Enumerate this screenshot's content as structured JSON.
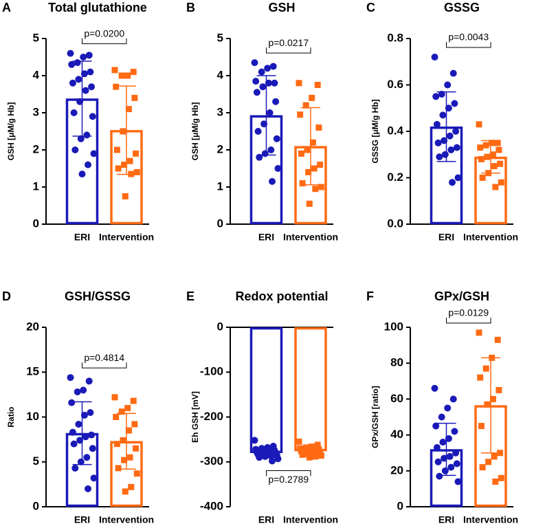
{
  "chart_data": [
    {
      "type": "bar",
      "panel": "A",
      "title": "Total glutathione",
      "ylabel": "GSH [μM/g Hb]",
      "categories": [
        "ERI",
        "Intervention"
      ],
      "values": [
        3.38,
        2.53
      ],
      "errors": [
        1.01,
        1.19
      ],
      "points": [
        [
          4.6,
          4.55,
          4.5,
          4.35,
          4.3,
          4.1,
          4.05,
          3.9,
          3.8,
          3.7,
          3.6,
          3.3,
          3.0,
          2.9,
          2.4,
          2.3,
          2.0,
          1.9,
          1.6,
          1.35
        ],
        [
          4.15,
          4.1,
          4.0,
          4.0,
          3.7,
          3.4,
          3.1,
          2.5,
          2.0,
          1.9,
          1.7,
          1.6,
          1.5,
          1.4,
          1.35,
          0.75
        ]
      ],
      "colors": [
        "#1a1ab8",
        "#ff6a13"
      ],
      "markers": [
        "circle",
        "square"
      ],
      "ylim": [
        0,
        5
      ],
      "yticks": [
        0,
        1,
        2,
        3,
        4,
        5
      ],
      "annotation": "p=0.0200"
    },
    {
      "type": "bar",
      "panel": "B",
      "title": "GSH",
      "ylabel": "GSH [μM/g Hb]",
      "categories": [
        "ERI",
        "Intervention"
      ],
      "values": [
        2.93,
        2.1
      ],
      "errors": [
        1.07,
        1.04
      ],
      "points": [
        [
          4.35,
          4.25,
          4.2,
          4.1,
          3.85,
          3.8,
          3.8,
          3.7,
          3.55,
          3.3,
          3.0,
          2.7,
          2.5,
          2.3,
          2.0,
          1.9,
          1.8,
          1.5,
          1.15
        ],
        [
          3.8,
          3.75,
          3.4,
          3.2,
          2.95,
          2.6,
          2.2,
          2.0,
          1.9,
          1.6,
          1.5,
          1.4,
          1.1,
          1.0,
          0.95,
          0.55
        ]
      ],
      "colors": [
        "#1a1ab8",
        "#ff6a13"
      ],
      "markers": [
        "circle",
        "square"
      ],
      "ylim": [
        0,
        5
      ],
      "yticks": [
        0,
        1,
        2,
        3,
        4,
        5
      ],
      "annotation": "p=0.0217"
    },
    {
      "type": "bar",
      "panel": "C",
      "title": "GSSG",
      "ylabel": "GSSG [μM/g Hb]",
      "categories": [
        "ERI",
        "Intervention"
      ],
      "values": [
        0.42,
        0.29
      ],
      "errors": [
        0.15,
        0.07
      ],
      "points": [
        [
          0.72,
          0.65,
          0.6,
          0.56,
          0.55,
          0.52,
          0.5,
          0.47,
          0.43,
          0.4,
          0.38,
          0.36,
          0.35,
          0.33,
          0.32,
          0.3,
          0.29,
          0.2,
          0.18
        ],
        [
          0.43,
          0.35,
          0.35,
          0.34,
          0.33,
          0.32,
          0.3,
          0.29,
          0.28,
          0.26,
          0.25,
          0.22,
          0.2,
          0.18,
          0.16
        ]
      ],
      "colors": [
        "#1a1ab8",
        "#ff6a13"
      ],
      "markers": [
        "circle",
        "square"
      ],
      "ylim": [
        0,
        0.8
      ],
      "yticks": [
        {
          "value": 0,
          "label": "0.0"
        },
        0.2,
        0.4,
        0.6,
        0.8
      ],
      "annotation": "p=0.0043"
    },
    {
      "type": "bar",
      "panel": "D",
      "title": "GSH/GSSG",
      "ylabel": "Ratio",
      "categories": [
        "ERI",
        "Intervention"
      ],
      "values": [
        8.2,
        7.3
      ],
      "errors": [
        3.5,
        3.1
      ],
      "points": [
        [
          14.4,
          14.0,
          13.0,
          12.8,
          11.6,
          10.5,
          10.2,
          9.2,
          8.3,
          8.0,
          7.8,
          7.4,
          7.0,
          6.5,
          5.5,
          5.0,
          4.3,
          3.2,
          2.0
        ],
        [
          12.2,
          11.8,
          11.0,
          10.6,
          10.0,
          9.2,
          8.5,
          7.4,
          7.0,
          6.5,
          5.5,
          5.2,
          4.3,
          3.7,
          2.2,
          1.7
        ]
      ],
      "colors": [
        "#1a1ab8",
        "#ff6a13"
      ],
      "markers": [
        "circle",
        "square"
      ],
      "ylim": [
        0,
        20
      ],
      "yticks": [
        0,
        5,
        10,
        15,
        20
      ],
      "annotation": "p=0.4814"
    },
    {
      "type": "bar",
      "panel": "E",
      "title": "Redox potential",
      "ylabel": "Eh GSH [mV]",
      "categories": [
        "ERI",
        "Intervention"
      ],
      "values": [
        -280,
        -276
      ],
      "errors": [
        10,
        8
      ],
      "points": [
        [
          -252,
          -265,
          -268,
          -270,
          -272,
          -274,
          -276,
          -278,
          -279,
          -280,
          -282,
          -283,
          -284,
          -285,
          -287,
          -288,
          -290,
          -293,
          -298
        ],
        [
          -255,
          -262,
          -266,
          -268,
          -270,
          -272,
          -273,
          -275,
          -276,
          -278,
          -280,
          -282,
          -284,
          -286,
          -288,
          -290
        ]
      ],
      "colors": [
        "#1a1ab8",
        "#ff6a13"
      ],
      "markers": [
        "circle",
        "square"
      ],
      "ylim": [
        -400,
        0
      ],
      "yticks": [
        -400,
        -300,
        -200,
        -100,
        0
      ],
      "annotation": "p=0.2789"
    },
    {
      "type": "bar",
      "panel": "F",
      "title": "GPx/GSH",
      "ylabel": "GPx/GSH [ratio]",
      "categories": [
        "ERI",
        "Intervention"
      ],
      "values": [
        32,
        56.5
      ],
      "errors": [
        14.5,
        26.5
      ],
      "points": [
        [
          66,
          60,
          55,
          50,
          45,
          42,
          38,
          36,
          33,
          30,
          28,
          27,
          25,
          24,
          22,
          20,
          17,
          14
        ],
        [
          97,
          93,
          83,
          77,
          72,
          65,
          60,
          57,
          45,
          30,
          28,
          25,
          22,
          16,
          14
        ]
      ],
      "colors": [
        "#1a1ab8",
        "#ff6a13"
      ],
      "markers": [
        "circle",
        "square"
      ],
      "ylim": [
        0,
        100
      ],
      "yticks": [
        0,
        20,
        40,
        60,
        80,
        100
      ],
      "annotation": "p=0.0129"
    }
  ]
}
